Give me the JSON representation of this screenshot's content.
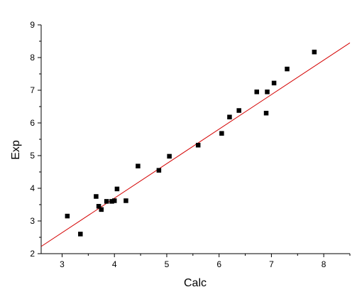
{
  "chart_data": {
    "type": "scatter",
    "xlabel": "Calc",
    "ylabel": "Exp",
    "xlim": [
      2.6,
      8.5
    ],
    "ylim": [
      2,
      9
    ],
    "xticks": [
      3,
      4,
      5,
      6,
      7,
      8
    ],
    "yticks": [
      2,
      3,
      4,
      5,
      6,
      7,
      8,
      9
    ],
    "xtick_labels": [
      "3",
      "4",
      "5",
      "6",
      "7",
      "8"
    ],
    "ytick_labels": [
      "2",
      "3",
      "4",
      "5",
      "6",
      "7",
      "8",
      "9"
    ],
    "grid": false,
    "legend": "none",
    "colors": {
      "points": "#000000",
      "fit_line": "#d40000",
      "axes": "#000000"
    },
    "points": [
      {
        "x": 3.1,
        "y": 3.15
      },
      {
        "x": 3.35,
        "y": 2.6
      },
      {
        "x": 3.65,
        "y": 3.75
      },
      {
        "x": 3.7,
        "y": 3.45
      },
      {
        "x": 3.75,
        "y": 3.35
      },
      {
        "x": 3.85,
        "y": 3.6
      },
      {
        "x": 3.95,
        "y": 3.6
      },
      {
        "x": 4.0,
        "y": 3.62
      },
      {
        "x": 4.05,
        "y": 3.98
      },
      {
        "x": 4.22,
        "y": 3.62
      },
      {
        "x": 4.45,
        "y": 4.68
      },
      {
        "x": 4.85,
        "y": 4.55
      },
      {
        "x": 5.05,
        "y": 4.98
      },
      {
        "x": 5.6,
        "y": 5.32
      },
      {
        "x": 6.05,
        "y": 5.68
      },
      {
        "x": 6.2,
        "y": 6.18
      },
      {
        "x": 6.38,
        "y": 6.38
      },
      {
        "x": 6.72,
        "y": 6.95
      },
      {
        "x": 6.9,
        "y": 6.3
      },
      {
        "x": 6.92,
        "y": 6.95
      },
      {
        "x": 7.05,
        "y": 7.22
      },
      {
        "x": 7.3,
        "y": 7.65
      },
      {
        "x": 7.82,
        "y": 8.17
      }
    ],
    "fit_line": {
      "x1": 2.6,
      "y1": 2.22,
      "x2": 8.5,
      "y2": 8.45
    }
  }
}
